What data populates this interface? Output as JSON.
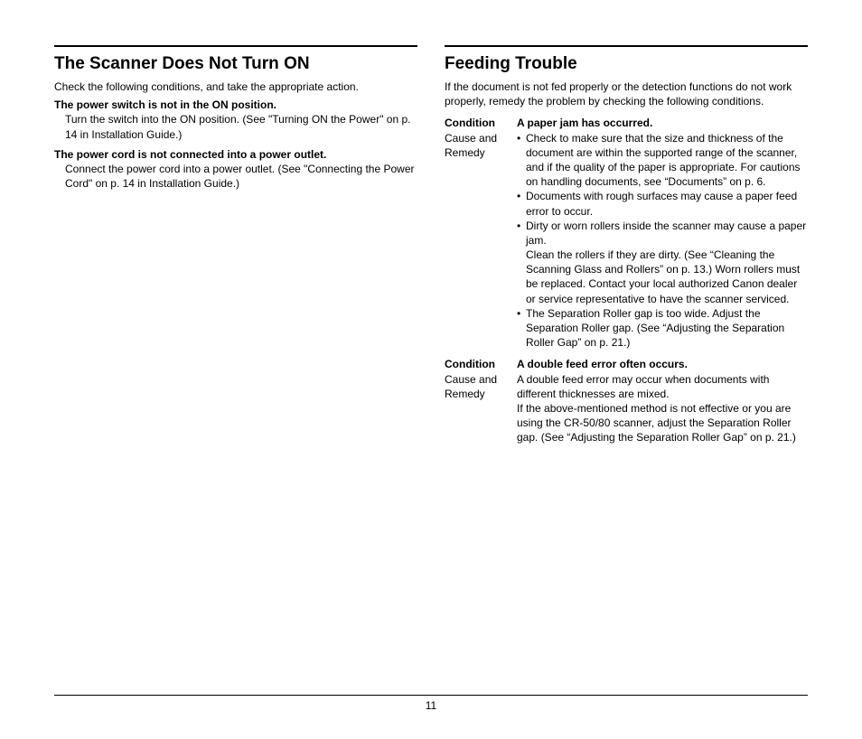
{
  "page_number": "11",
  "left": {
    "title": "The Scanner Does Not Turn ON",
    "intro": "Check the following conditions, and take the appropriate action.",
    "items": [
      {
        "heading": "The power switch is not in the ON position.",
        "body": "Turn the switch into the ON position. (See \"Turning ON the Power\" on p. 14 in Installation Guide.)"
      },
      {
        "heading": "The power cord is not connected into a power outlet.",
        "body": "Connect the power cord into a power outlet. (See \"Connecting the Power Cord\" on p. 14 in Installation Guide.)"
      }
    ]
  },
  "right": {
    "title": "Feeding Trouble",
    "intro": "If the document is not fed properly or the detection functions do not work properly, remedy the problem by checking the following conditions.",
    "label_condition": "Condition",
    "label_cause": "Cause and Remedy",
    "cond1": {
      "title": "A paper jam has occurred.",
      "bullets": [
        "Check to make sure that the size and thickness of the document are within the supported range of the scanner, and if the quality of the paper is appropriate. For cautions on handling documents, see “Documents” on p. 6.",
        "Documents with rough surfaces may cause a paper feed error to occur.",
        "Dirty or worn rollers inside the scanner may cause a paper jam.\nClean the rollers if they are dirty. (See “Cleaning the Scanning Glass and Rollers” on p. 13.) Worn rollers must be replaced. Contact your local authorized Canon dealer or service representative to have the scanner serviced.",
        "The Separation Roller gap is too wide. Adjust the Separation Roller gap. (See “Adjusting the Separation Roller Gap” on p. 21.)"
      ]
    },
    "cond2": {
      "title": "A double feed error often occurs.",
      "body": "A double feed error may occur when documents with different thicknesses are mixed.\nIf the above-mentioned method is not effective or you are using the CR-50/80 scanner, adjust the Separation Roller gap. (See “Adjusting the Separation Roller Gap” on p. 21.)"
    }
  }
}
